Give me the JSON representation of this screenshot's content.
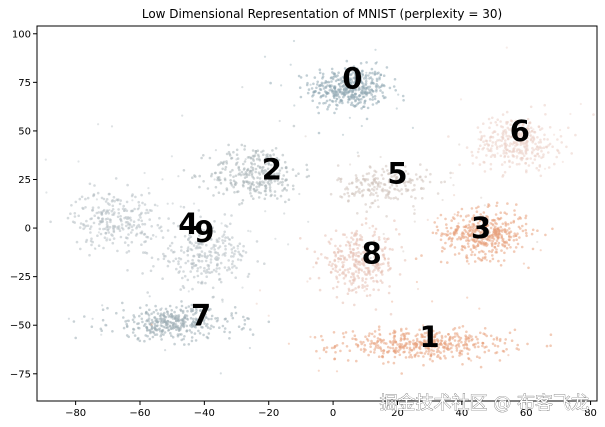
{
  "chart_data": {
    "type": "scatter",
    "title": "Low Dimensional Representation of MNIST (perplexity = 30)",
    "xlabel": "",
    "ylabel": "",
    "xlim": [
      -92,
      82
    ],
    "ylim": [
      -89,
      104
    ],
    "xticks": [
      -80,
      -60,
      -40,
      -20,
      0,
      20,
      40,
      60,
      80
    ],
    "yticks": [
      -75,
      -50,
      -25,
      0,
      25,
      50,
      75,
      100
    ],
    "grid": false,
    "legend": "none",
    "clusters": [
      {
        "label": "0",
        "label_x": 6,
        "label_y": 76,
        "color": "#8fa8b2",
        "center": [
          5,
          72
        ],
        "spread": [
          11,
          10
        ],
        "count": 420
      },
      {
        "label": "1",
        "label_x": 30,
        "label_y": -57,
        "color": "#e8a07c",
        "center": [
          28,
          -60
        ],
        "spread": [
          24,
          7
        ],
        "count": 440
      },
      {
        "label": "2",
        "label_x": -19,
        "label_y": 29,
        "color": "#a9b5b8",
        "center": [
          -24,
          28
        ],
        "spread": [
          13,
          13
        ],
        "count": 300
      },
      {
        "label": "3",
        "label_x": 46,
        "label_y": -1,
        "color": "#e8a07c",
        "center": [
          47,
          -3
        ],
        "spread": [
          12,
          11
        ],
        "count": 420
      },
      {
        "label": "4",
        "label_x": -45,
        "label_y": 1,
        "color": "#b4bec2",
        "center": [
          -68,
          5
        ],
        "spread": [
          12,
          13
        ],
        "count": 240
      },
      {
        "label": "5",
        "label_x": 20,
        "label_y": 27,
        "color": "#cfc2bb",
        "center": [
          16,
          22
        ],
        "spread": [
          13,
          10
        ],
        "count": 200
      },
      {
        "label": "6",
        "label_x": 58,
        "label_y": 49,
        "color": "#ebd0c6",
        "center": [
          57,
          44
        ],
        "spread": [
          12,
          12
        ],
        "count": 330
      },
      {
        "label": "7",
        "label_x": -41,
        "label_y": -46,
        "color": "#9aabb3",
        "center": [
          -50,
          -49
        ],
        "spread": [
          18,
          8
        ],
        "count": 360
      },
      {
        "label": "8",
        "label_x": 12,
        "label_y": -14,
        "color": "#e5c0b2",
        "center": [
          8,
          -18
        ],
        "spread": [
          11,
          14
        ],
        "count": 300
      },
      {
        "label": "9",
        "label_x": -40,
        "label_y": -3,
        "color": "#b4bec2",
        "center": [
          -40,
          -14
        ],
        "spread": [
          13,
          15
        ],
        "count": 260
      }
    ]
  },
  "watermark": "掘金技术社区 @ 布客飞龙"
}
